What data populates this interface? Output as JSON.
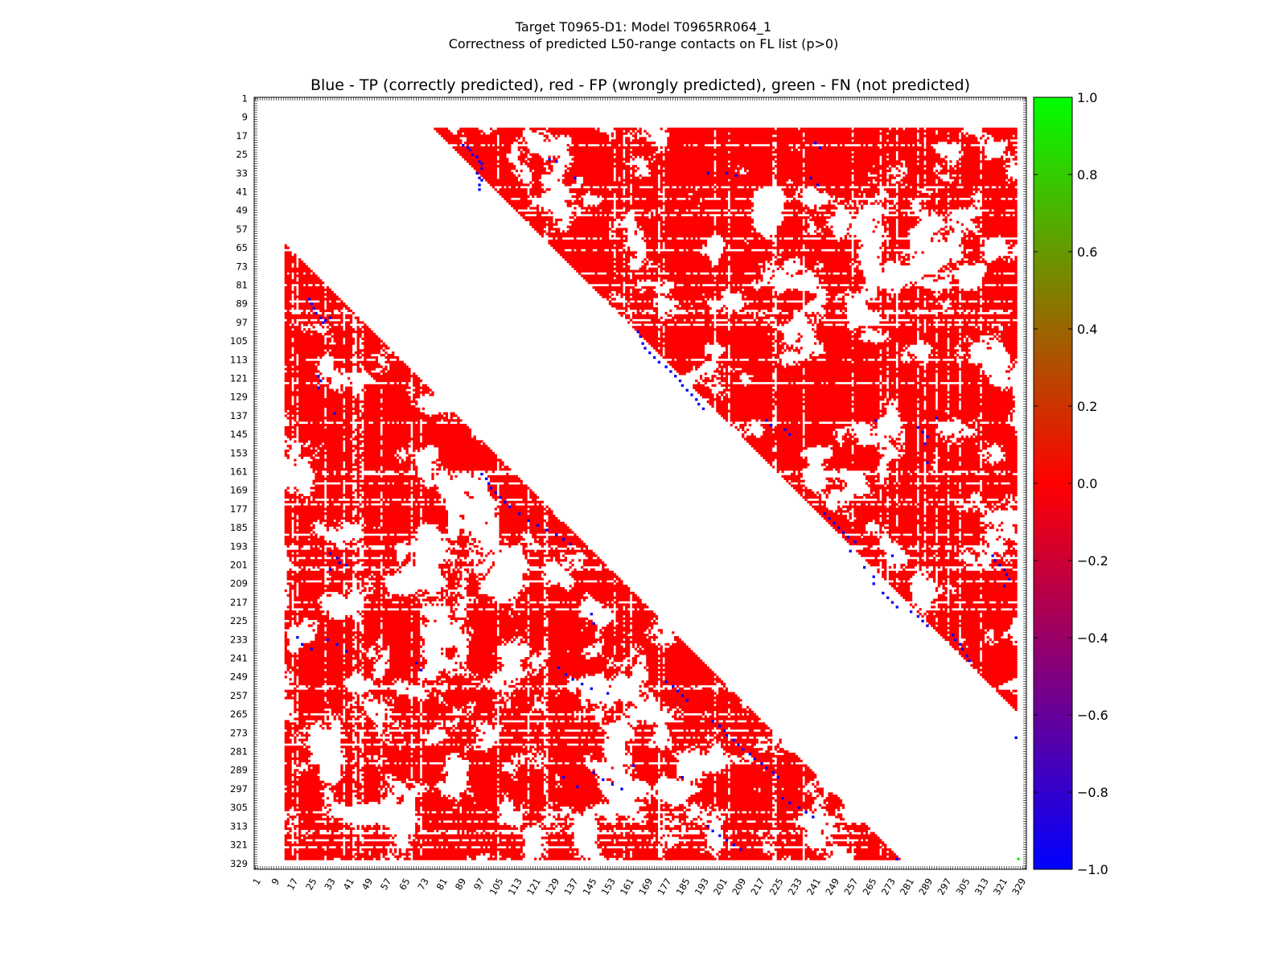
{
  "figure": {
    "suptitle_line1": "Target T0965-D1: Model T0965RR064_1",
    "suptitle_line2": "Correctness of predicted L50-range contacts on FL list (p>0)",
    "axes_title": "Blue - TP (correctly predicted), red - FP (wrongly predicted), green - FN (not predicted)"
  },
  "chart_data": {
    "type": "heatmap",
    "title": "Blue - TP (correctly predicted), red - FP (wrongly predicted), green - FN (not predicted)",
    "x_ticks": [
      "1",
      "9",
      "17",
      "25",
      "33",
      "41",
      "49",
      "57",
      "65",
      "73",
      "81",
      "89",
      "97",
      "105",
      "113",
      "121",
      "129",
      "137",
      "145",
      "153",
      "161",
      "169",
      "177",
      "185",
      "193",
      "201",
      "209",
      "217",
      "225",
      "233",
      "241",
      "249",
      "257",
      "265",
      "273",
      "281",
      "289",
      "297",
      "305",
      "313",
      "321",
      "329"
    ],
    "y_ticks": [
      "1",
      "9",
      "17",
      "25",
      "33",
      "41",
      "49",
      "57",
      "65",
      "73",
      "81",
      "89",
      "97",
      "105",
      "113",
      "121",
      "129",
      "137",
      "145",
      "153",
      "161",
      "169",
      "177",
      "185",
      "193",
      "201",
      "209",
      "217",
      "225",
      "233",
      "241",
      "249",
      "257",
      "265",
      "273",
      "281",
      "289",
      "297",
      "305",
      "313",
      "321",
      "329"
    ],
    "residue_range": [
      1,
      331
    ],
    "colorbar": {
      "min": -1.0,
      "max": 1.0,
      "ticks": [
        "1.0",
        "0.8",
        "0.6",
        "0.4",
        "0.2",
        "0.0",
        "−0.2",
        "−0.4",
        "−0.6",
        "−0.8",
        "−1.0"
      ],
      "colors": [
        "#0000ff",
        "#ff0000",
        "#00ff00"
      ]
    },
    "colors": {
      "tp": "#0000ff",
      "fp": "#ff0000",
      "fn": "#00ff00"
    },
    "upper_triangle": {
      "rows": [
        14,
        327
      ],
      "cols": [
        64,
        327
      ],
      "min_separation": 64
    },
    "lower_triangle": {
      "rows": [
        64,
        327
      ],
      "cols": [
        14,
        277
      ],
      "min_separation": 50
    },
    "tp_contacts_upper": [
      [
        21,
        90
      ],
      [
        22,
        92
      ],
      [
        23,
        93
      ],
      [
        25,
        94
      ],
      [
        26,
        96
      ],
      [
        28,
        97
      ],
      [
        29,
        98
      ],
      [
        31,
        98
      ],
      [
        33,
        96
      ],
      [
        35,
        97
      ],
      [
        36,
        98
      ],
      [
        38,
        97
      ],
      [
        40,
        97
      ],
      [
        27,
        127
      ],
      [
        28,
        130
      ],
      [
        35,
        138
      ],
      [
        33,
        203
      ],
      [
        34,
        207
      ],
      [
        33,
        195
      ],
      [
        20,
        241
      ],
      [
        22,
        243
      ],
      [
        35,
        239
      ],
      [
        38,
        242
      ],
      [
        101,
        165
      ],
      [
        103,
        166
      ],
      [
        106,
        167
      ],
      [
        108,
        168
      ],
      [
        110,
        170
      ],
      [
        112,
        172
      ],
      [
        114,
        174
      ],
      [
        116,
        177
      ],
      [
        118,
        179
      ],
      [
        120,
        181
      ],
      [
        122,
        183
      ],
      [
        124,
        184
      ],
      [
        126,
        186
      ],
      [
        128,
        188
      ],
      [
        130,
        190
      ],
      [
        132,
        191
      ],
      [
        134,
        193
      ],
      [
        139,
        220
      ],
      [
        141,
        222
      ],
      [
        143,
        228
      ],
      [
        139,
        267
      ],
      [
        142,
        285
      ],
      [
        144,
        287
      ],
      [
        146,
        289
      ],
      [
        138,
        293
      ],
      [
        149,
        288
      ],
      [
        157,
        289
      ],
      [
        145,
        230
      ],
      [
        179,
        245
      ],
      [
        181,
        247
      ],
      [
        183,
        249
      ],
      [
        185,
        251
      ],
      [
        187,
        253
      ],
      [
        189,
        255
      ],
      [
        191,
        258
      ],
      [
        195,
        256
      ],
      [
        197,
        274
      ],
      [
        209,
        266
      ],
      [
        213,
        270
      ],
      [
        215,
        272
      ],
      [
        217,
        274
      ],
      [
        219,
        276
      ],
      [
        221,
        282
      ],
      [
        223,
        285
      ],
      [
        225,
        287
      ],
      [
        227,
        289
      ],
      [
        197,
        317
      ],
      [
        199,
        318
      ],
      [
        201,
        320
      ],
      [
        203,
        322
      ],
      [
        205,
        323
      ],
      [
        207,
        324
      ],
      [
        210,
        322
      ],
      [
        231,
        300
      ],
      [
        233,
        301
      ],
      [
        235,
        303
      ],
      [
        237,
        304
      ],
      [
        240,
        306
      ],
      [
        242,
        307
      ],
      [
        202,
        262
      ],
      [
        206,
        266
      ],
      [
        275,
        327
      ]
    ],
    "tp_contacts_lower": [
      [
        87,
        24
      ],
      [
        89,
        25
      ],
      [
        91,
        26
      ],
      [
        93,
        27
      ],
      [
        95,
        29
      ],
      [
        96,
        31
      ],
      [
        95,
        33
      ],
      [
        97,
        30
      ],
      [
        120,
        28
      ],
      [
        122,
        29
      ],
      [
        125,
        28
      ],
      [
        136,
        35
      ],
      [
        196,
        33
      ],
      [
        198,
        36
      ],
      [
        200,
        37
      ],
      [
        203,
        33
      ],
      [
        201,
        40
      ],
      [
        162,
        98
      ],
      [
        164,
        100
      ],
      [
        166,
        101
      ],
      [
        168,
        102
      ],
      [
        170,
        104
      ],
      [
        172,
        106
      ],
      [
        174,
        108
      ],
      [
        176,
        110
      ],
      [
        179,
        114
      ],
      [
        182,
        118
      ],
      [
        184,
        122
      ],
      [
        186,
        126
      ],
      [
        188,
        130
      ],
      [
        190,
        133
      ],
      [
        192,
        136
      ],
      [
        222,
        145
      ],
      [
        226,
        146
      ],
      [
        232,
        19
      ],
      [
        235,
        21
      ],
      [
        237,
        25
      ],
      [
        233,
        32
      ],
      [
        235,
        36
      ],
      [
        238,
        40
      ],
      [
        243,
        70
      ],
      [
        246,
        72
      ],
      [
        245,
        131
      ],
      [
        248,
        134
      ],
      [
        250,
        137
      ],
      [
        252,
        141
      ],
      [
        254,
        145
      ],
      [
        256,
        152
      ],
      [
        251,
        177
      ],
      [
        253,
        180
      ],
      [
        255,
        182
      ],
      [
        257,
        184
      ],
      [
        259,
        186
      ],
      [
        268,
        197
      ],
      [
        270,
        200
      ],
      [
        272,
        202
      ],
      [
        274,
        203
      ],
      [
        276,
        206
      ],
      [
        278,
        208
      ],
      [
        280,
        210
      ],
      [
        282,
        213
      ],
      [
        284,
        215
      ],
      [
        286,
        218
      ],
      [
        288,
        220
      ],
      [
        290,
        223
      ],
      [
        292,
        225
      ],
      [
        290,
        146
      ],
      [
        293,
        150
      ],
      [
        295,
        154
      ],
      [
        297,
        158
      ],
      [
        292,
        133
      ],
      [
        296,
        139
      ],
      [
        287,
        163
      ],
      [
        292,
        184
      ],
      [
        301,
        227
      ],
      [
        303,
        230
      ],
      [
        305,
        234
      ],
      [
        307,
        237
      ],
      [
        309,
        240
      ],
      [
        313,
        195
      ],
      [
        315,
        197
      ],
      [
        317,
        200
      ],
      [
        319,
        203
      ],
      [
        321,
        206
      ],
      [
        323,
        209
      ],
      [
        327,
        276
      ]
    ],
    "fn_contacts": [
      [
        327,
        328
      ]
    ]
  }
}
